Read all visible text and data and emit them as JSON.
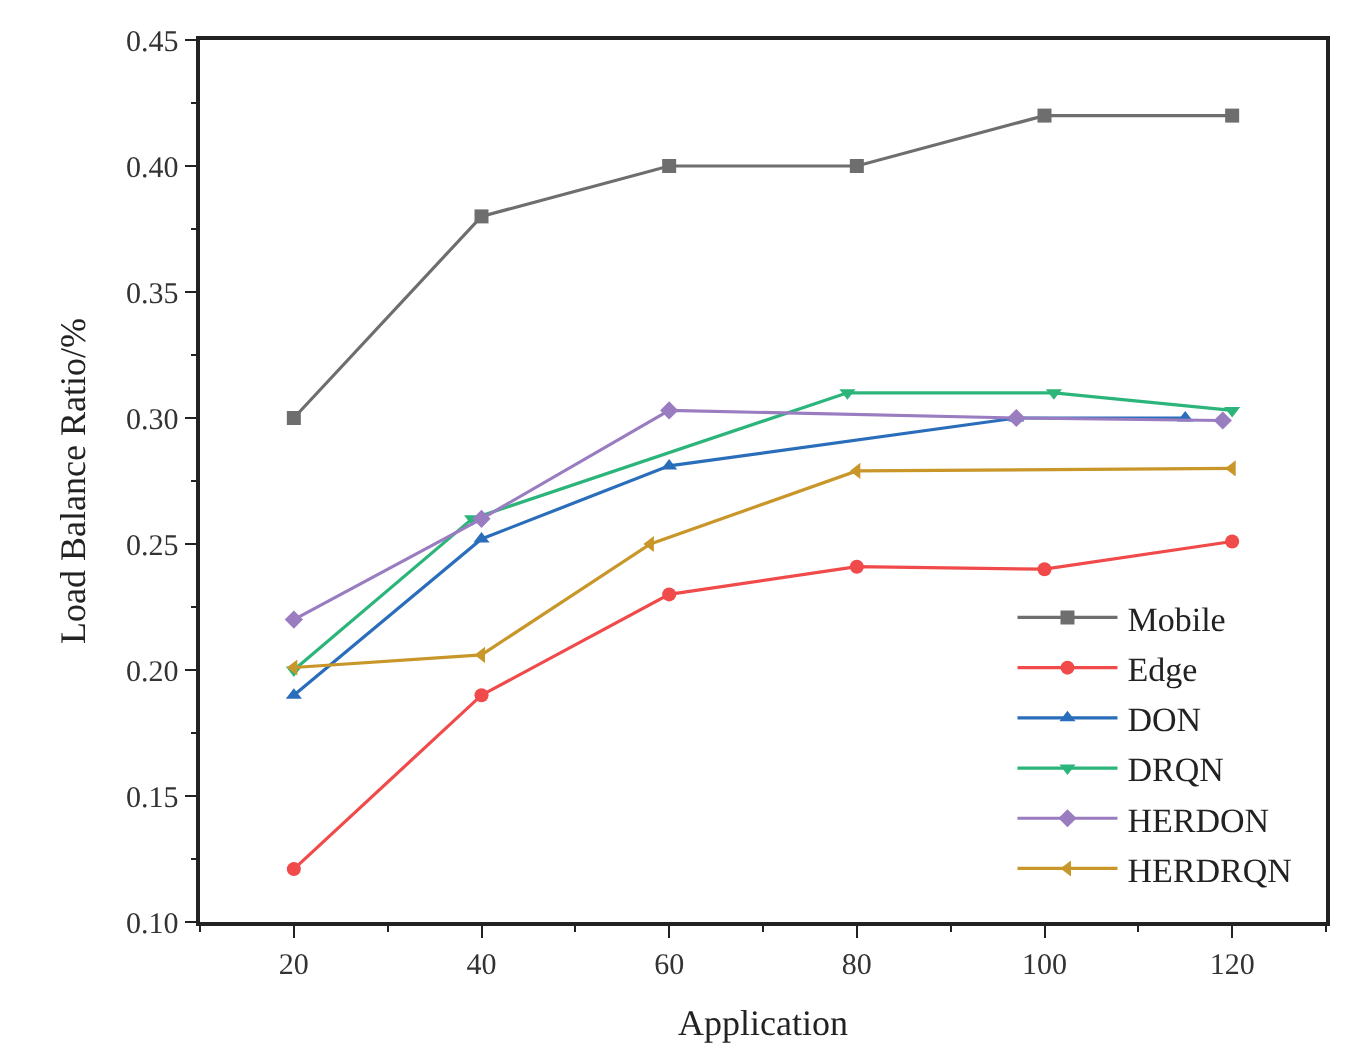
{
  "chart_data": {
    "type": "line",
    "xlabel": "Application",
    "ylabel": "Load Balance Ratio/%",
    "xlim": [
      10,
      130
    ],
    "xticks": [
      20,
      40,
      60,
      80,
      100,
      120
    ],
    "ylim": [
      0.1,
      0.45
    ],
    "yticks": [
      {
        "value": 0.1,
        "label": "0.10"
      },
      0.15,
      {
        "value": 0.2,
        "label": "0.20"
      },
      0.25,
      {
        "value": 0.3,
        "label": "0.30"
      },
      0.35,
      {
        "value": 0.4,
        "label": "0.40"
      },
      0.45
    ],
    "legend": "bottom right",
    "line_style": "solid",
    "series": [
      {
        "name": "Mobile",
        "color": "#6e6e6e",
        "marker": "square",
        "x": [
          20,
          40,
          60,
          80,
          100,
          120
        ],
        "values": [
          0.3,
          0.38,
          0.4,
          0.4,
          0.42,
          0.42
        ]
      },
      {
        "name": "Edge",
        "color": "#f04a4a",
        "marker": "circle",
        "x": [
          20,
          40,
          60,
          80,
          100,
          120
        ],
        "values": [
          0.121,
          0.19,
          0.23,
          0.241,
          0.24,
          0.251
        ]
      },
      {
        "name": "DON",
        "color": "#2a6ebb",
        "marker": "triangle",
        "x": [
          20,
          40,
          60,
          97,
          115
        ],
        "values": [
          0.19,
          0.252,
          0.281,
          0.3,
          0.3
        ]
      },
      {
        "name": "DRQN",
        "color": "#2bb57a",
        "marker": "triangle-down",
        "x": [
          20,
          39,
          79,
          101,
          120
        ],
        "values": [
          0.2,
          0.26,
          0.31,
          0.31,
          0.303
        ]
      },
      {
        "name": "HERDON",
        "color": "#9a7cc0",
        "marker": "diamond",
        "x": [
          20,
          40,
          60,
          97,
          119
        ],
        "values": [
          0.22,
          0.26,
          0.303,
          0.3,
          0.299
        ]
      },
      {
        "name": "HERDRQN",
        "color": "#c9962a",
        "marker": "triangle-left",
        "x": [
          20,
          40,
          58,
          80,
          120
        ],
        "values": [
          0.201,
          0.206,
          0.25,
          0.279,
          0.28
        ]
      }
    ]
  }
}
